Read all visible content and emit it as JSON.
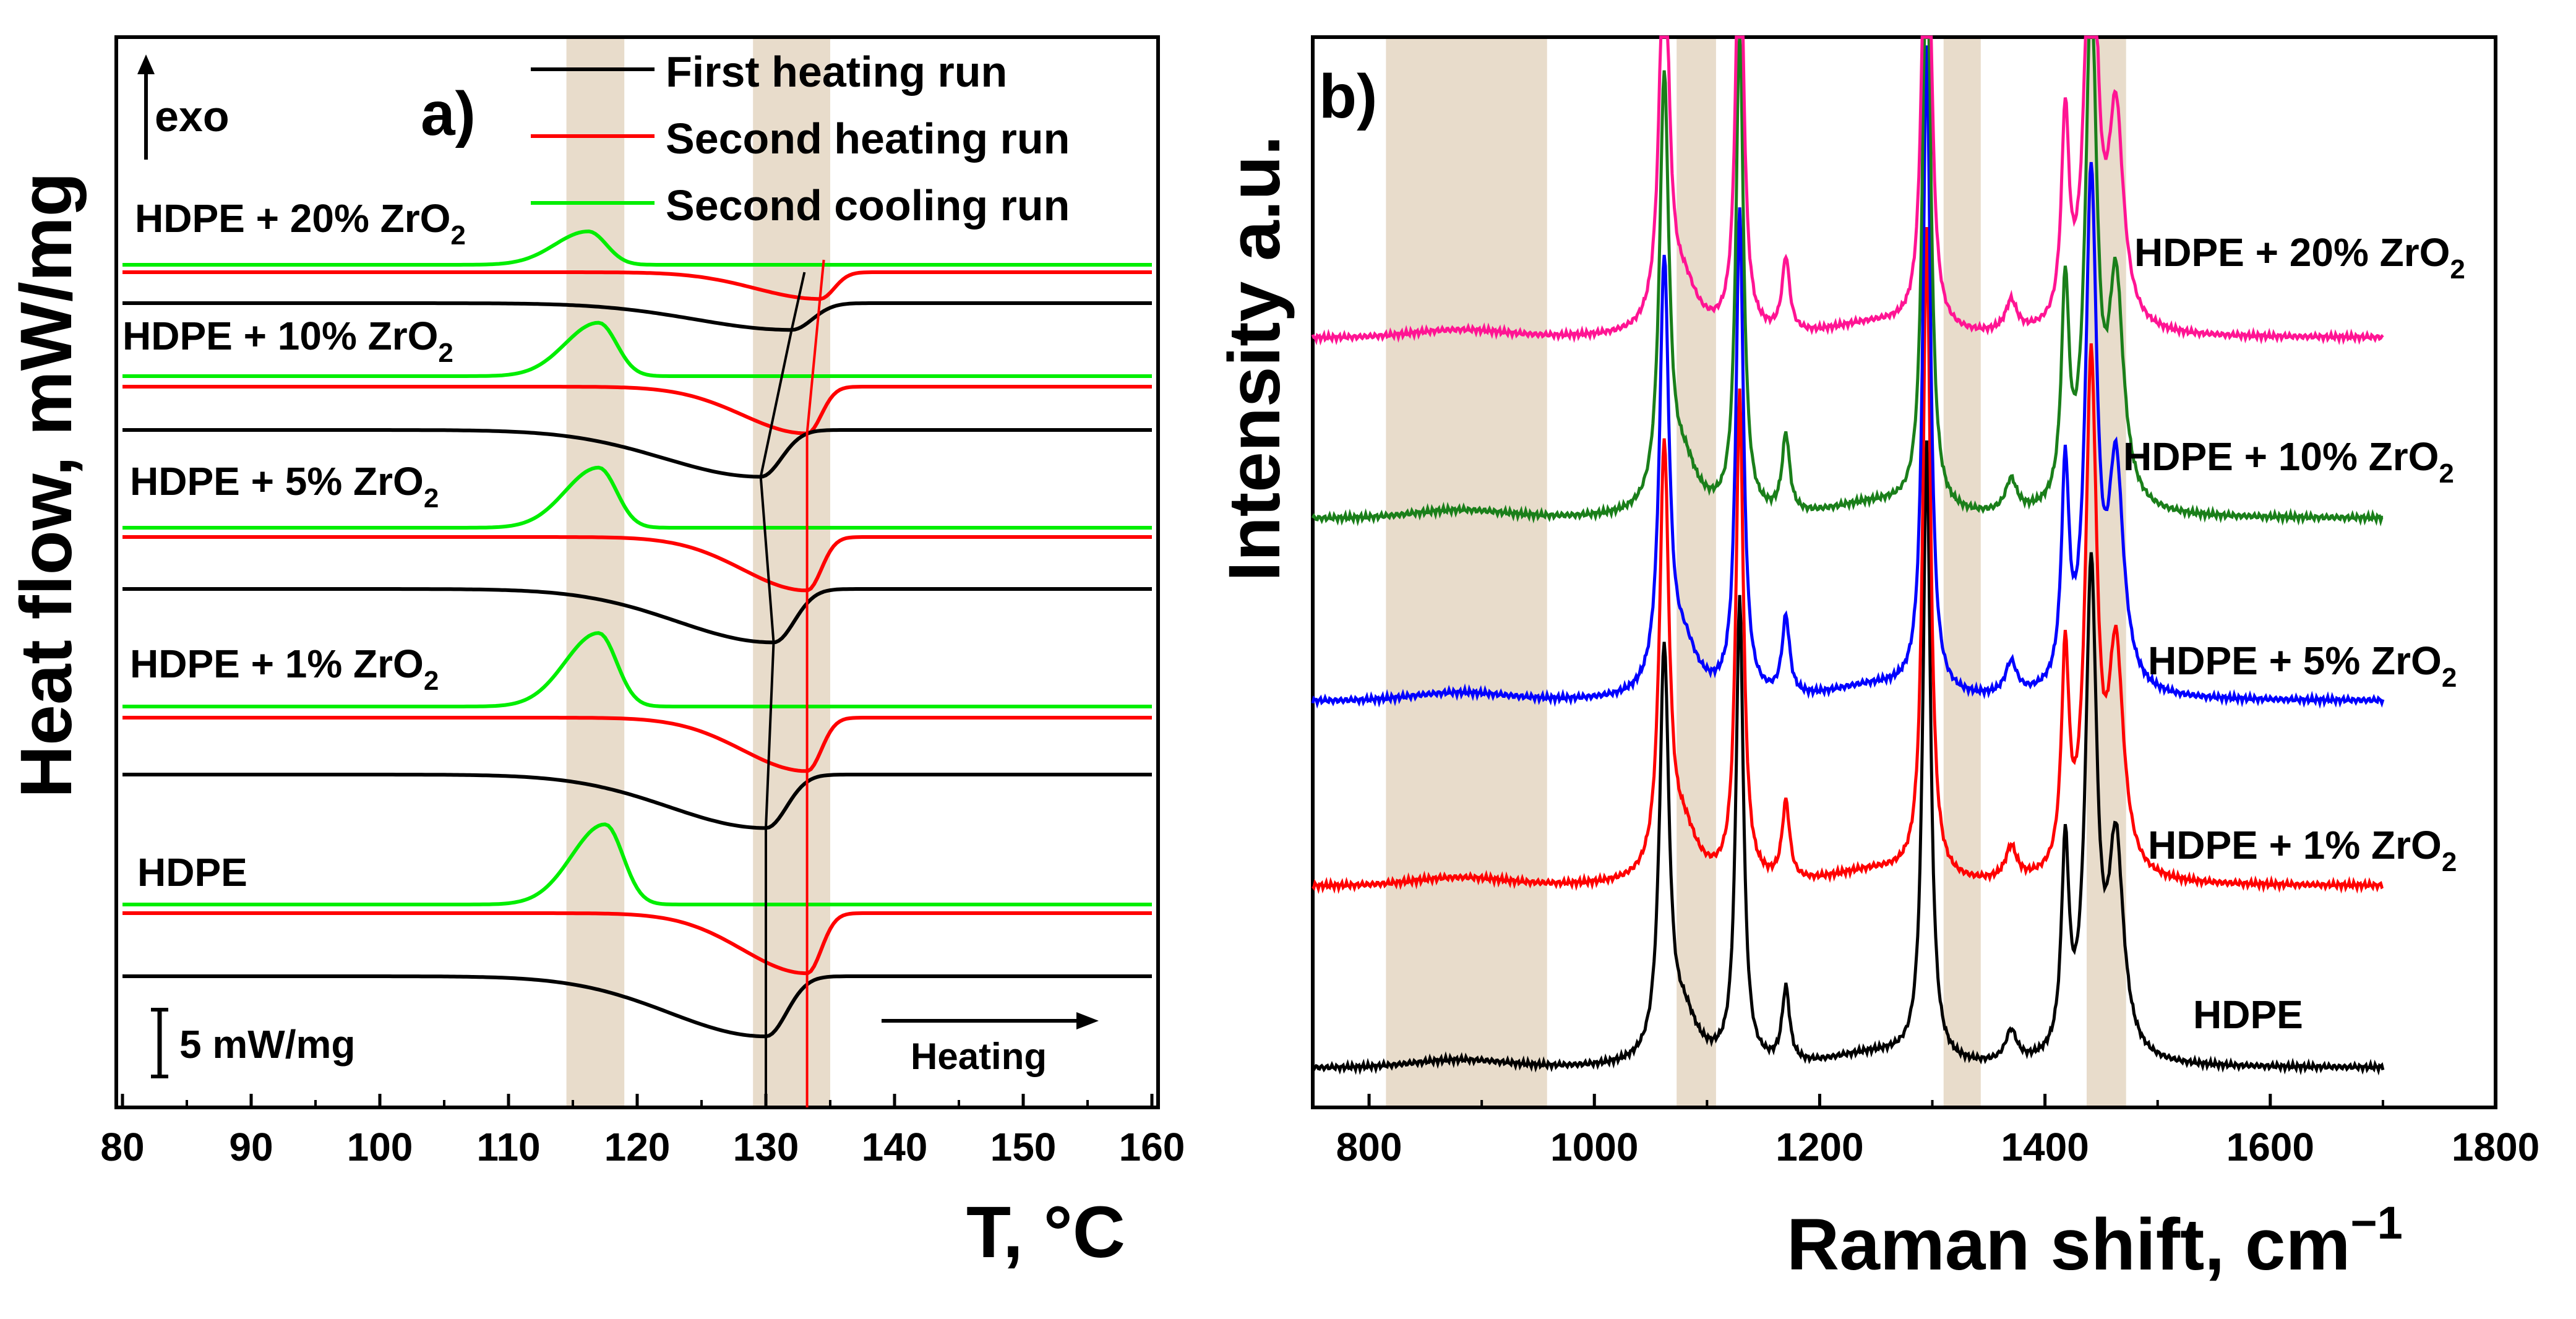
{
  "chart_data": [
    {
      "type": "line",
      "panel_label": "a)",
      "title": "",
      "xlabel": "T, °C",
      "ylabel": "Heat flow, mW/mg",
      "xlim": [
        80,
        160
      ],
      "x_ticks": [
        80,
        90,
        100,
        110,
        120,
        130,
        140,
        150,
        160
      ],
      "legend": {
        "placement": "top-right",
        "entries": [
          {
            "label": "First heating run",
            "color": "#000000"
          },
          {
            "label": "Second heating run",
            "color": "#ff0000"
          },
          {
            "label": "Second cooling run",
            "color": "#00ee00"
          }
        ]
      },
      "annotations": {
        "exo": "exo",
        "scale_bar": "5 mW/mg",
        "heating_arrow": "Heating"
      },
      "highlight_bands_T": [
        [
          114.5,
          119
        ],
        [
          129,
          135
        ]
      ],
      "guide_lines": [
        {
          "color": "#000000",
          "T_bottom": 130.0,
          "T_top": 133.0
        },
        {
          "color": "#ff0000",
          "T_bottom": 133.2,
          "T_top": 134.5
        }
      ],
      "samples": [
        {
          "name": "HDPE",
          "label_main": "HDPE",
          "label_sub": "",
          "cooling_peak_T": 117.5,
          "cooling_peak_height_mWmg": 6,
          "first_heating_min_T": 130.0,
          "first_heating_depth_mWmg": 4.5,
          "second_heating_min_T": 133.2,
          "second_heating_depth_mWmg": 4.5
        },
        {
          "name": "HDPE + 1% ZrO2",
          "label_main": "HDPE + 1% ZrO",
          "label_sub": "2",
          "cooling_peak_T": 117.0,
          "cooling_peak_height_mWmg": 5.5,
          "first_heating_min_T": 130.0,
          "first_heating_depth_mWmg": 4,
          "second_heating_min_T": 133.2,
          "second_heating_depth_mWmg": 4
        },
        {
          "name": "HDPE + 5% ZrO2",
          "label_main": "HDPE + 5% ZrO",
          "label_sub": "2",
          "cooling_peak_T": 117.0,
          "cooling_peak_height_mWmg": 4.5,
          "first_heating_min_T": 130.6,
          "first_heating_depth_mWmg": 4,
          "second_heating_min_T": 133.2,
          "second_heating_depth_mWmg": 4
        },
        {
          "name": "HDPE + 10% ZrO2",
          "label_main": "HDPE + 10% ZrO",
          "label_sub": "2",
          "cooling_peak_T": 117.0,
          "cooling_peak_height_mWmg": 4,
          "first_heating_min_T": 129.6,
          "first_heating_depth_mWmg": 3.5,
          "second_heating_min_T": 133.2,
          "second_heating_depth_mWmg": 3.5
        },
        {
          "name": "HDPE + 20% ZrO2",
          "label_main": "HDPE + 20% ZrO",
          "label_sub": "2",
          "cooling_peak_T": 116.2,
          "cooling_peak_height_mWmg": 2.5,
          "first_heating_min_T": 132.0,
          "first_heating_depth_mWmg": 2,
          "second_heating_min_T": 134.2,
          "second_heating_depth_mWmg": 2
        }
      ]
    },
    {
      "type": "line",
      "panel_label": "b)",
      "title": "",
      "xlabel": "Raman shift, cm",
      "xlabel_superscript": "−1",
      "ylabel": "Intensity a.u.",
      "xlim": [
        750,
        1800
      ],
      "x_ticks": [
        800,
        1000,
        1200,
        1400,
        1600,
        1800
      ],
      "data_x_range": [
        750,
        1700
      ],
      "highlight_bands_cm": [
        [
          815,
          958
        ],
        [
          1073,
          1108
        ],
        [
          1310,
          1343
        ],
        [
          1437,
          1472
        ]
      ],
      "peaks_cm": [
        {
          "pos": 1062,
          "rel_height": 0.66,
          "width": 5
        },
        {
          "pos": 1080,
          "rel_height": 0.07,
          "width": 14
        },
        {
          "pos": 1129,
          "rel_height": 0.75,
          "width": 4
        },
        {
          "pos": 1170,
          "rel_height": 0.12,
          "width": 4
        },
        {
          "pos": 1295,
          "rel_height": 1.0,
          "width": 4
        },
        {
          "pos": 1370,
          "rel_height": 0.05,
          "width": 6
        },
        {
          "pos": 1418,
          "rel_height": 0.33,
          "width": 4
        },
        {
          "pos": 1441,
          "rel_height": 0.78,
          "width": 6
        },
        {
          "pos": 1463,
          "rel_height": 0.34,
          "width": 8
        }
      ],
      "series": [
        {
          "name": "HDPE",
          "label_main": "HDPE",
          "label_sub": "",
          "color": "#000000",
          "intensity_scale": 1.0
        },
        {
          "name": "HDPE + 1% ZrO2",
          "label_main": "HDPE + 1%  ZrO",
          "label_sub": "2",
          "color": "#ff0000",
          "intensity_scale": 1.05
        },
        {
          "name": "HDPE + 5% ZrO2",
          "label_main": "HDPE + 5% ZrO",
          "label_sub": "2",
          "color": "#0000ff",
          "intensity_scale": 1.05
        },
        {
          "name": "HDPE + 10% ZrO2",
          "label_main": "HDPE + 10% ZrO",
          "label_sub": "2",
          "color": "#1a7f1a",
          "intensity_scale": 1.05
        },
        {
          "name": "HDPE + 20% ZrO2",
          "label_main": "HDPE + 20% ZrO",
          "label_sub": "2",
          "color": "#ff1493",
          "intensity_scale": 1.0
        }
      ]
    }
  ]
}
